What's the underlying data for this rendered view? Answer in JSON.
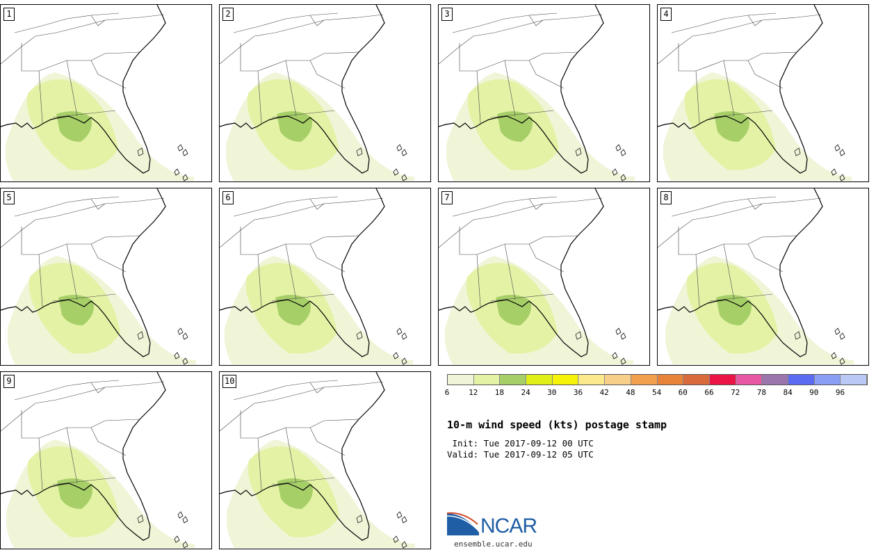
{
  "panels": [
    {
      "label": "1"
    },
    {
      "label": "2"
    },
    {
      "label": "3"
    },
    {
      "label": "4"
    },
    {
      "label": "5"
    },
    {
      "label": "6"
    },
    {
      "label": "7"
    },
    {
      "label": "8"
    },
    {
      "label": "9"
    },
    {
      "label": "10"
    }
  ],
  "legend": {
    "colors": [
      "#f0f5d8",
      "#e4f2a6",
      "#a7cf68",
      "#e0ef18",
      "#f7f308",
      "#fbe98b",
      "#f7cf88",
      "#f2a04d",
      "#e8843a",
      "#d96a3c",
      "#ec1346",
      "#e757a4",
      "#9a76ad",
      "#5b6cf2",
      "#8b9ef5",
      "#b9c8f5"
    ],
    "ticks": [
      "6",
      "12",
      "18",
      "24",
      "30",
      "36",
      "42",
      "48",
      "54",
      "60",
      "66",
      "72",
      "78",
      "84",
      "90",
      "96"
    ]
  },
  "title": "10-m wind speed (kts) postage stamp",
  "init_line": " Init: Tue 2017-09-12 00 UTC",
  "valid_line": "Valid: Tue 2017-09-12 05 UTC",
  "logo": {
    "name": "NCAR",
    "url": "ensemble.ucar.edu"
  }
}
